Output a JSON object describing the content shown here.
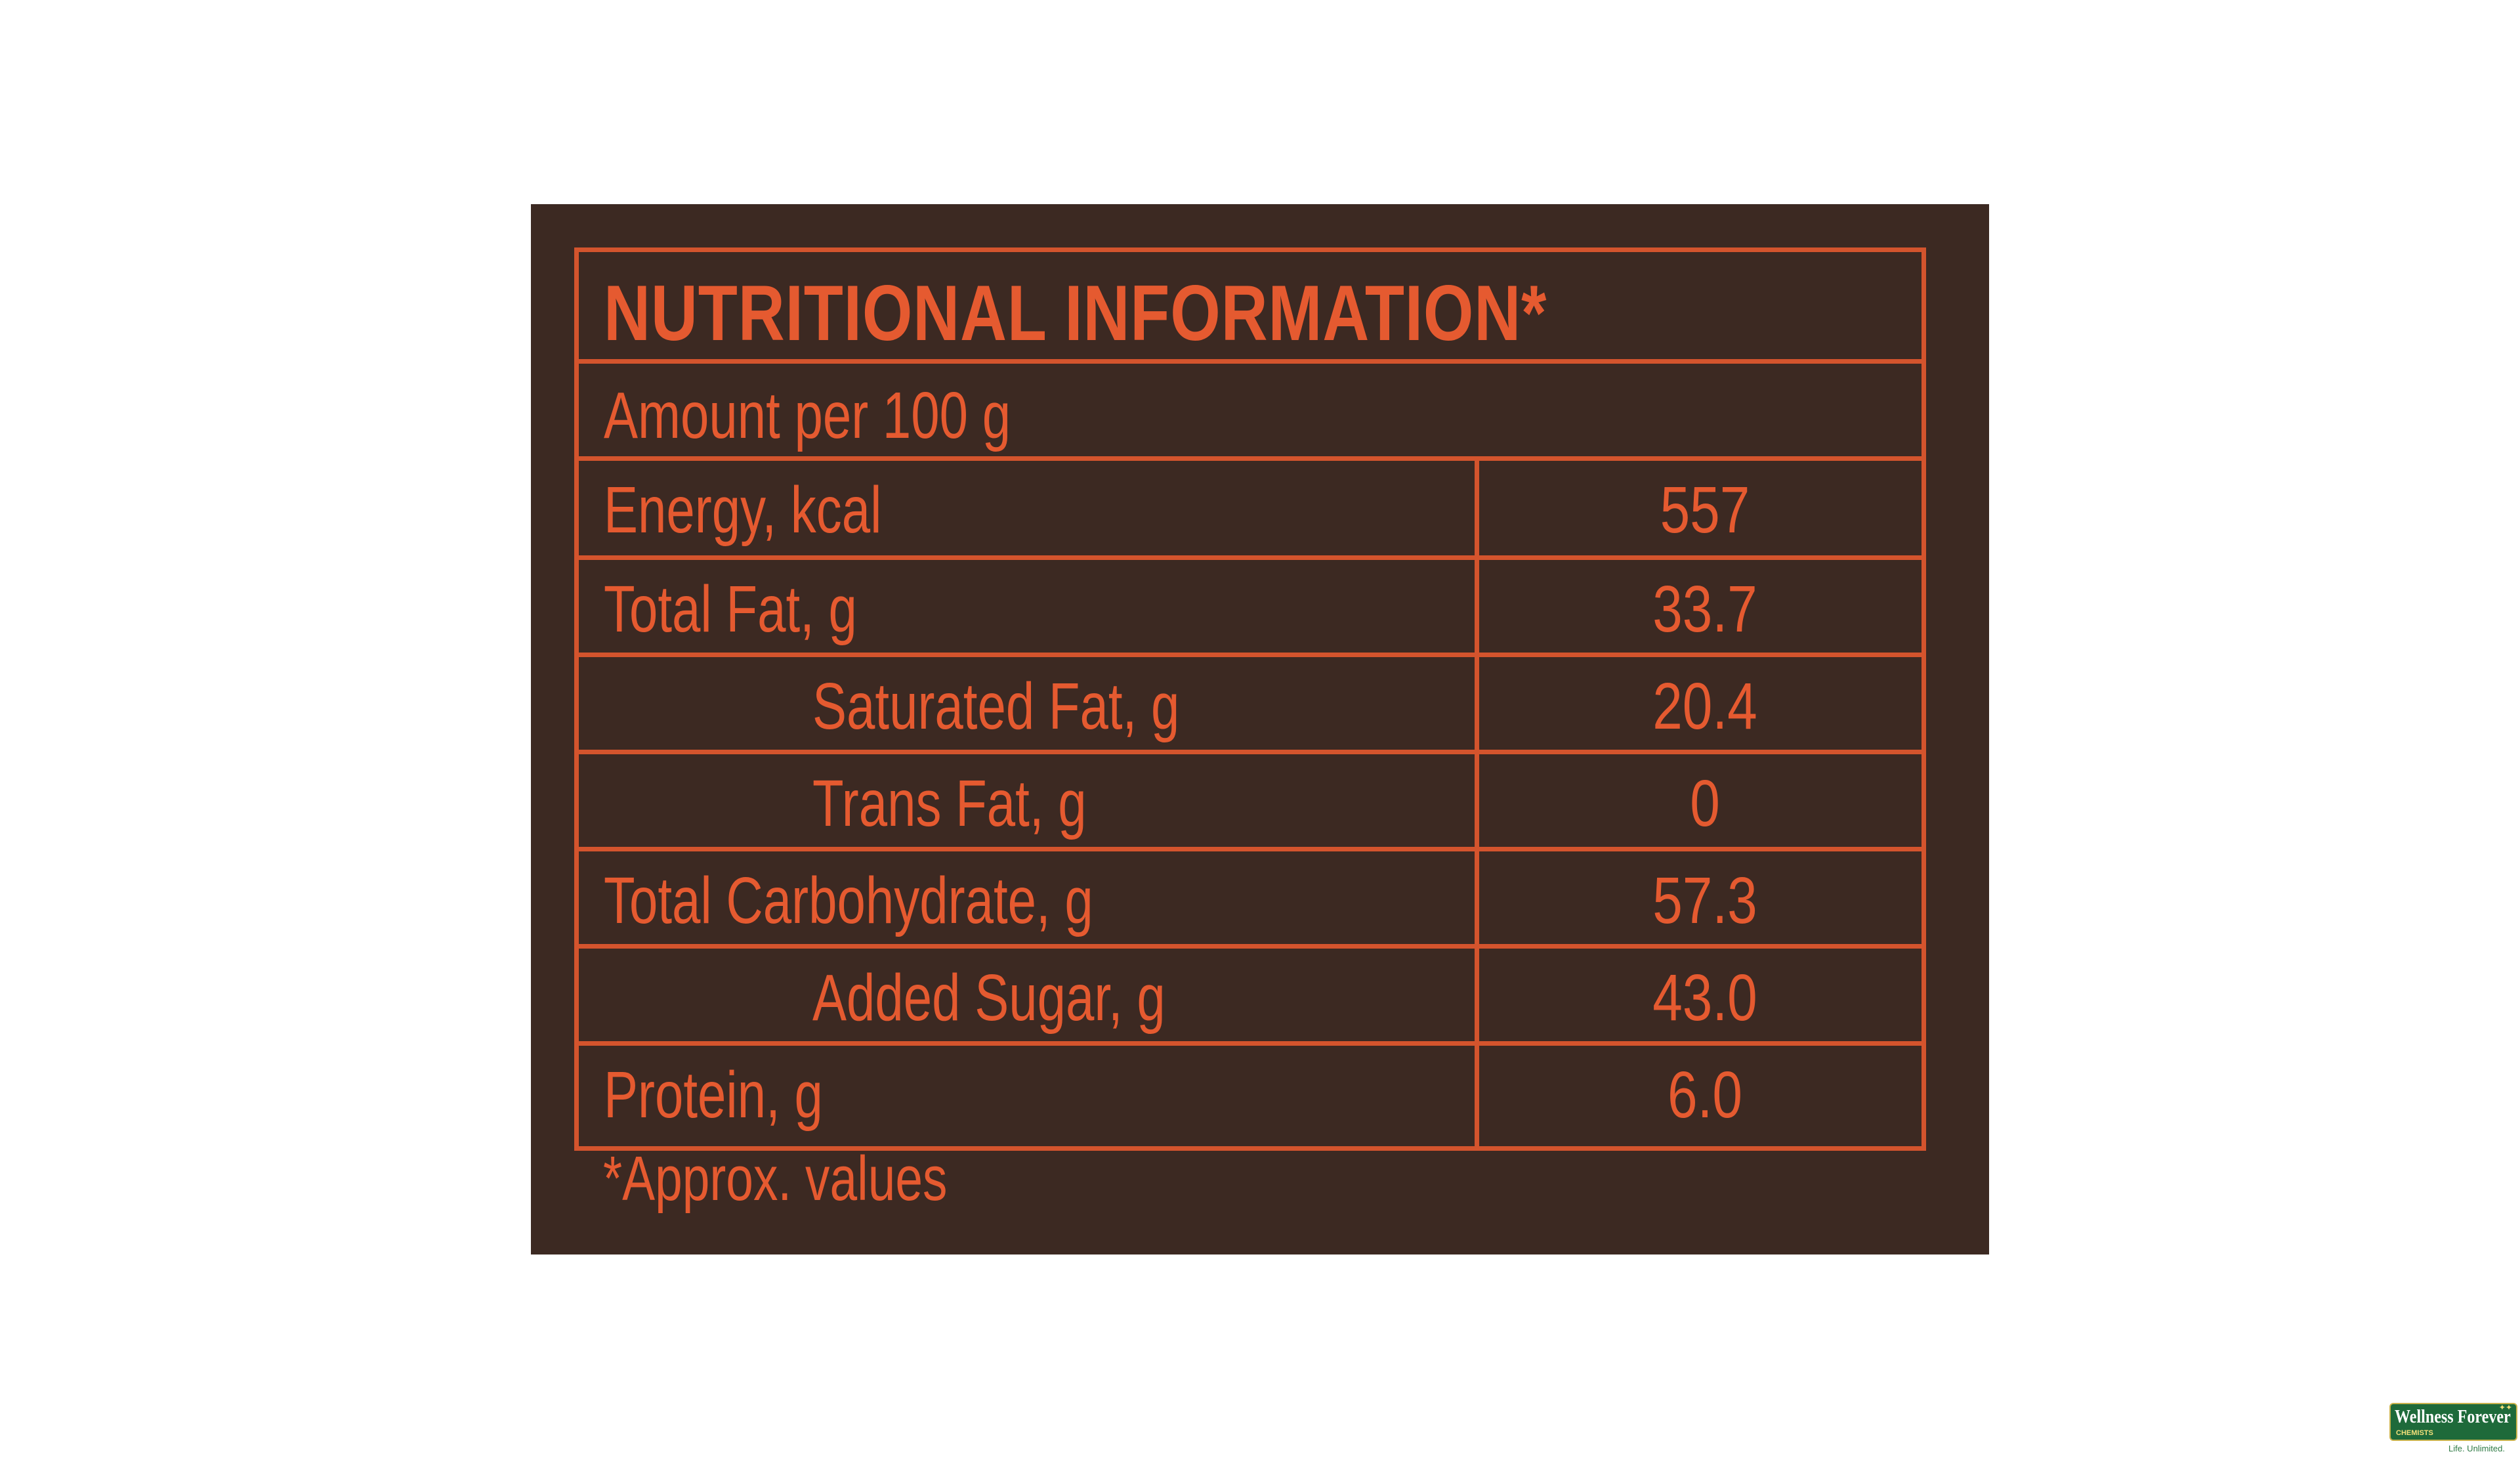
{
  "nutrition_table": {
    "title": "NUTRITIONAL INFORMATION*",
    "amount_per": "Amount per 100 g",
    "rows": [
      {
        "label": "Energy, kcal",
        "value": "557",
        "indent": 0
      },
      {
        "label": "Total Fat, g",
        "value": "33.7",
        "indent": 0
      },
      {
        "label": "Saturated Fat, g",
        "value": "20.4",
        "indent": 1
      },
      {
        "label": "Trans Fat, g",
        "value": "0",
        "indent": 1
      },
      {
        "label": "Total Carbohydrate, g",
        "value": "57.3",
        "indent": 0
      },
      {
        "label": "Added Sugar, g",
        "value": "43.0",
        "indent": 1
      },
      {
        "label": "Protein, g",
        "value": "6.0",
        "indent": 0
      }
    ],
    "footnote": "*Approx. values"
  },
  "brand_logo": {
    "name": "Wellness Forever",
    "sub": "CHEMISTS",
    "tagline": "Life. Unlimited."
  },
  "colors": {
    "panel_background": "#3c2922",
    "accent": "#e55a30",
    "page_background": "#ffffff"
  }
}
